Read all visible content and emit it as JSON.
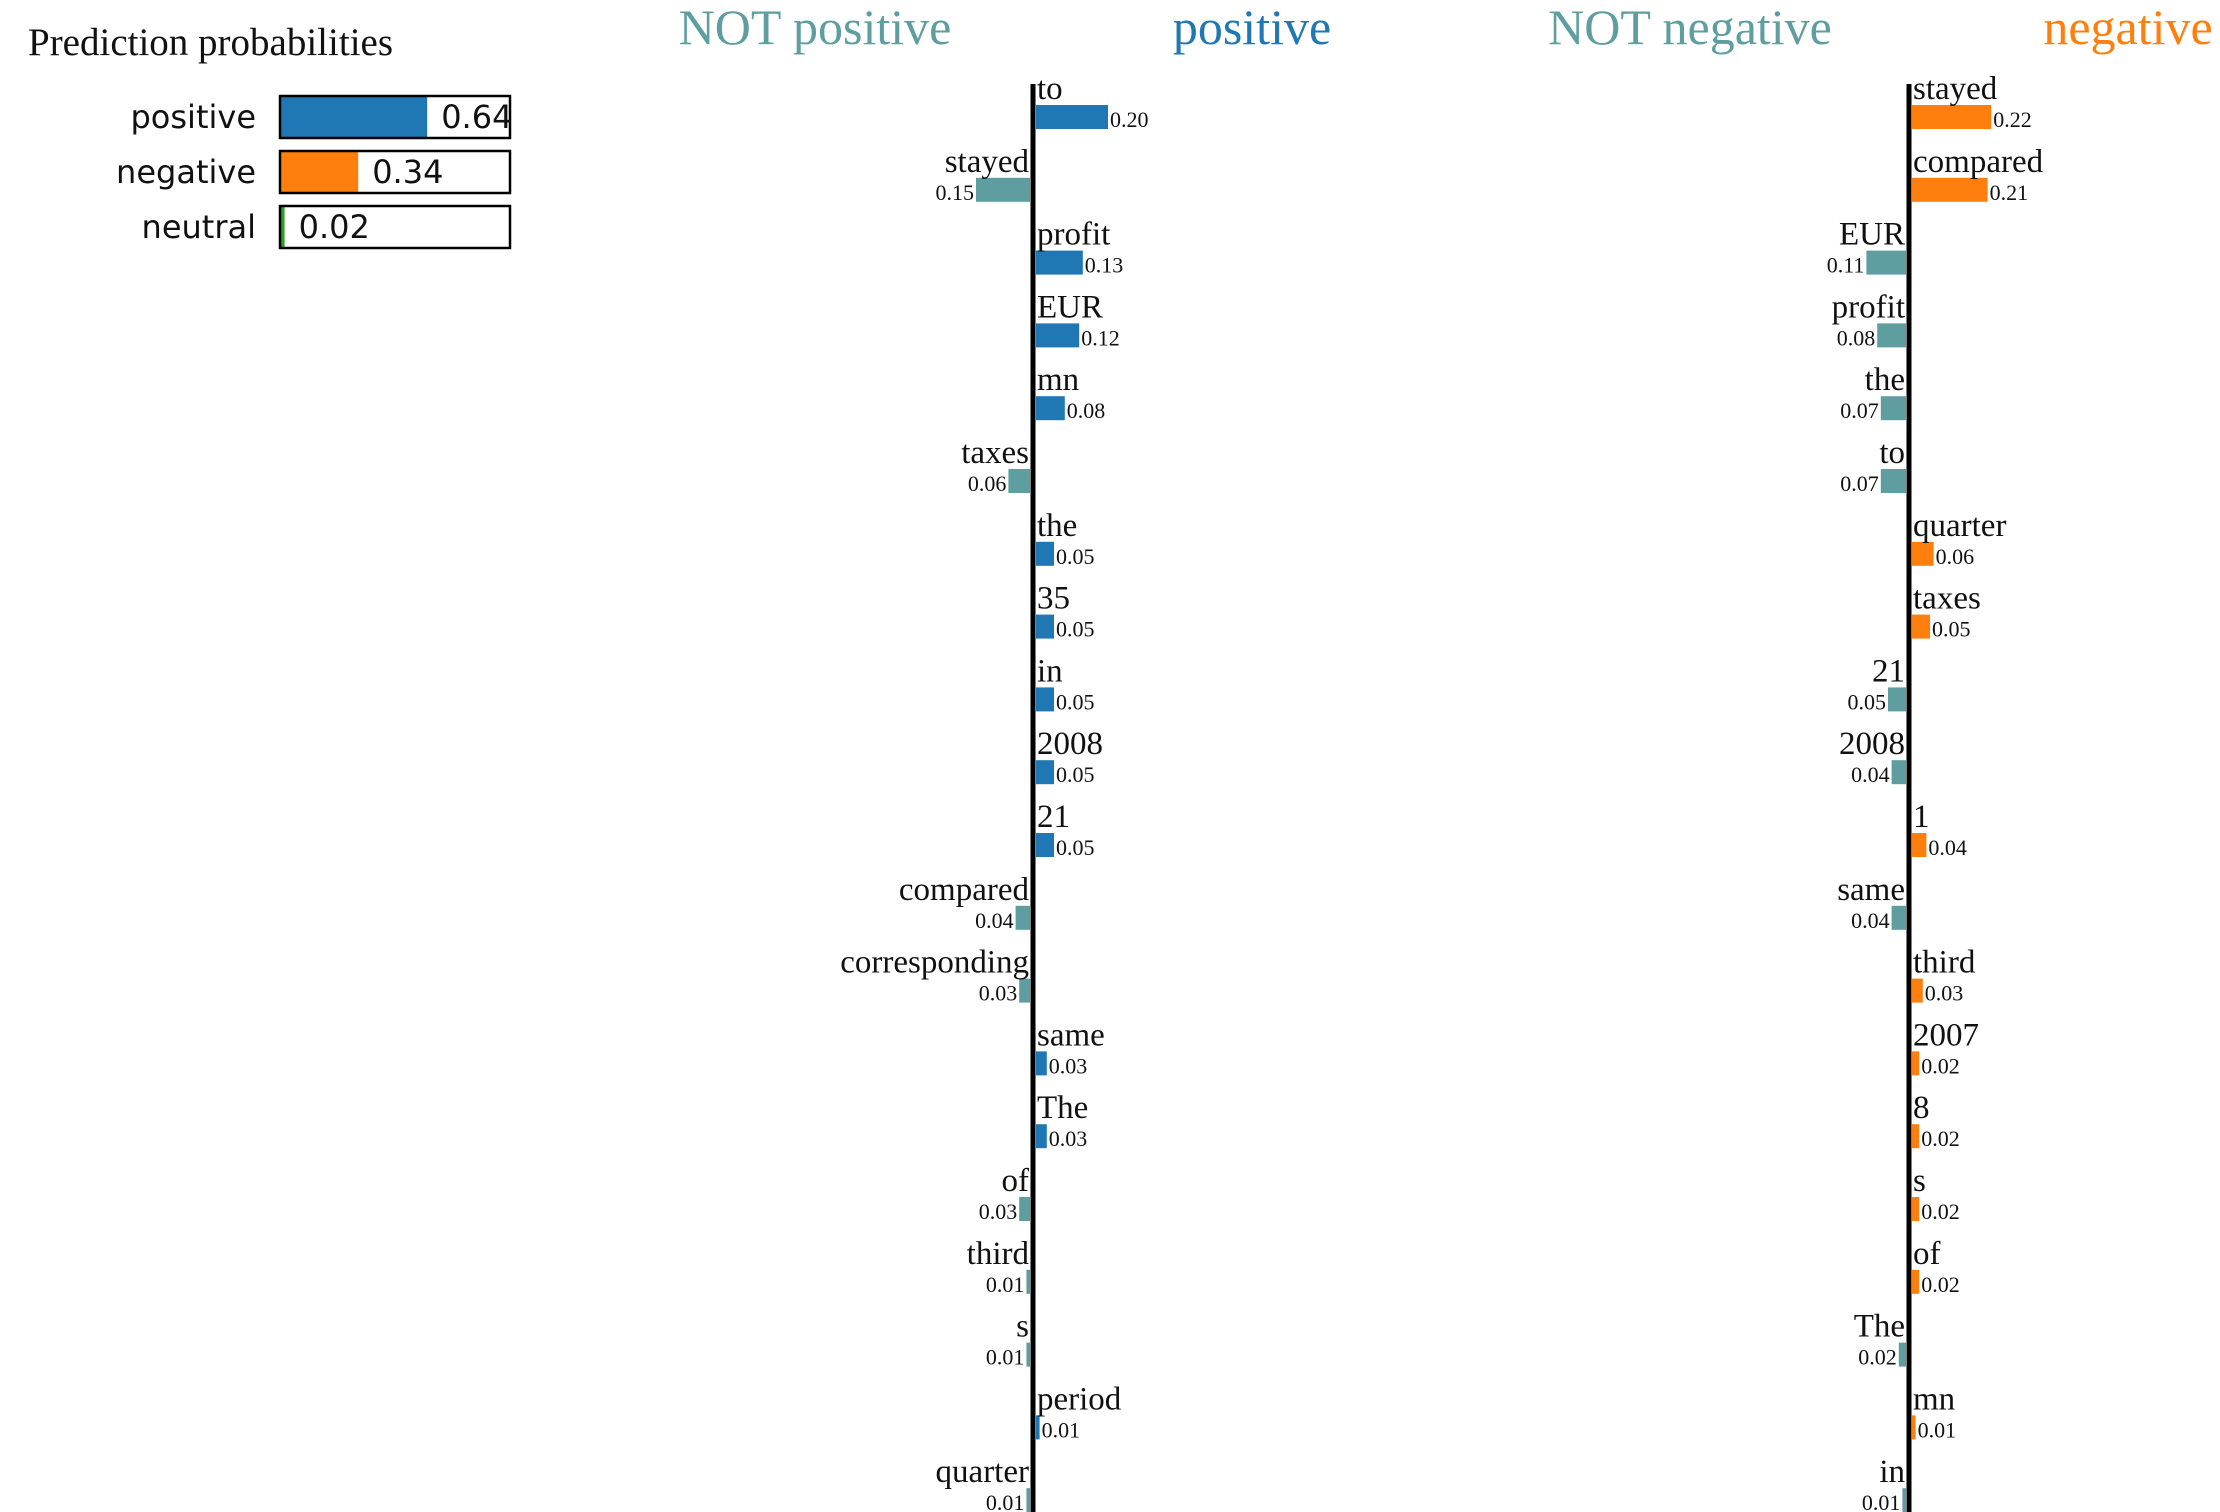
{
  "chart_data": [
    {
      "type": "bar",
      "title": "Prediction probabilities",
      "categories": [
        "positive",
        "negative",
        "neutral"
      ],
      "values": [
        0.64,
        0.34,
        0.02
      ],
      "value_labels": [
        "0.64",
        "0.34",
        "0.02"
      ],
      "xlim": [
        0,
        1
      ],
      "colors": [
        "#1f77b4",
        "#ff7f0e",
        "#2ca02c"
      ]
    },
    {
      "type": "bar",
      "class_label": "positive",
      "not_label": "NOT positive",
      "color": "#1f77b4",
      "not_color": "#5f9ea0",
      "words": [
        "to",
        "stayed",
        "profit",
        "EUR",
        "mn",
        "taxes",
        "the",
        "35",
        "in",
        "2008",
        "21",
        "compared",
        "corresponding",
        "same",
        "The",
        "of",
        "third",
        "s",
        "period",
        "quarter"
      ],
      "values": [
        0.2,
        -0.15,
        0.13,
        0.12,
        0.08,
        -0.06,
        0.05,
        0.05,
        0.05,
        0.05,
        0.05,
        -0.04,
        -0.03,
        0.03,
        0.03,
        -0.03,
        -0.01,
        -0.01,
        0.01,
        -0.01
      ],
      "value_labels": [
        "0.20",
        "0.15",
        "0.13",
        "0.12",
        "0.08",
        "0.06",
        "0.05",
        "0.05",
        "0.05",
        "0.05",
        "0.05",
        "0.04",
        "0.03",
        "0.03",
        "0.03",
        "0.03",
        "0.01",
        "0.01",
        "0.01",
        "0.01"
      ]
    },
    {
      "type": "bar",
      "class_label": "negative",
      "not_label": "NOT negative",
      "color": "#ff7f0e",
      "not_color": "#5f9ea0",
      "words": [
        "stayed",
        "compared",
        "EUR",
        "profit",
        "the",
        "to",
        "quarter",
        "taxes",
        "21",
        "2008",
        "1",
        "same",
        "third",
        "2007",
        "8",
        "s",
        "of",
        "The",
        "mn",
        "in"
      ],
      "values": [
        0.22,
        0.21,
        -0.11,
        -0.08,
        -0.07,
        -0.07,
        0.06,
        0.05,
        -0.05,
        -0.04,
        0.04,
        -0.04,
        0.03,
        0.02,
        0.02,
        0.02,
        0.02,
        -0.02,
        0.01,
        -0.01
      ],
      "value_labels": [
        "0.22",
        "0.21",
        "0.11",
        "0.08",
        "0.07",
        "0.07",
        "0.06",
        "0.05",
        "0.05",
        "0.04",
        "0.04",
        "0.04",
        "0.03",
        "0.02",
        "0.02",
        "0.02",
        "0.02",
        "0.02",
        "0.01",
        "0.01"
      ]
    }
  ]
}
